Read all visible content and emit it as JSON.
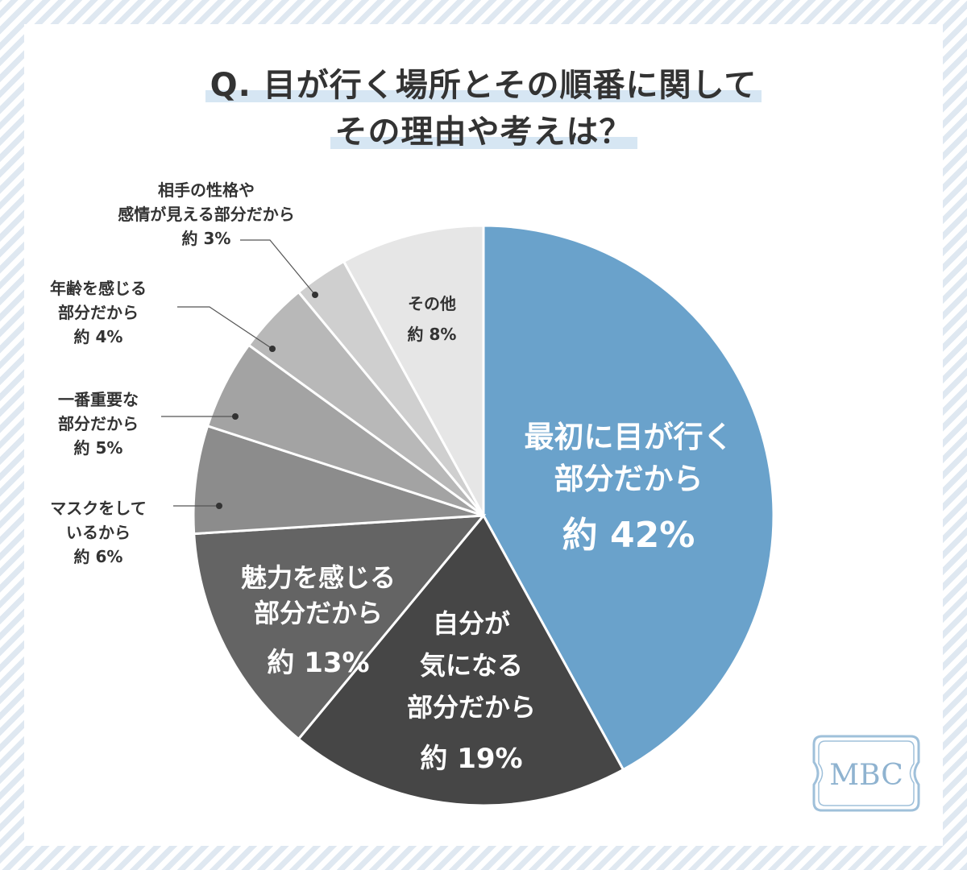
{
  "title": {
    "line1": "Q. 目が行く場所とその順番に関して",
    "line2": "その理由や考えは？"
  },
  "colors": {
    "accent": "#6aa2cb",
    "dark": "#464646",
    "mid_dark": "#646464",
    "gray1": "#8c8c8c",
    "gray2": "#a3a3a3",
    "gray3": "#b8b8b8",
    "gray4": "#cfcfcf",
    "light": "#e6e6e6",
    "highlight": "#d6e6f3"
  },
  "chart_data": {
    "type": "pie",
    "start_angle_deg": 0,
    "direction": "clockwise",
    "slices": [
      {
        "lines": [
          "最初に目が行く",
          "部分だから"
        ],
        "pct_text": "約 42%",
        "value": 42,
        "color": "#6aa2cb",
        "label_style": "inside-large"
      },
      {
        "lines": [
          "自分が",
          "気になる",
          "部分だから"
        ],
        "pct_text": "約 19%",
        "value": 19,
        "color": "#464646",
        "label_style": "inside"
      },
      {
        "lines": [
          "魅力を感じる",
          "部分だから"
        ],
        "pct_text": "約 13%",
        "value": 13,
        "color": "#646464",
        "label_style": "inside"
      },
      {
        "lines": [
          "マスクをして",
          "いるから"
        ],
        "pct_text": "約 6%",
        "value": 6,
        "color": "#8c8c8c",
        "label_style": "callout"
      },
      {
        "lines": [
          "一番重要な",
          "部分だから"
        ],
        "pct_text": "約 5%",
        "value": 5,
        "color": "#a3a3a3",
        "label_style": "callout"
      },
      {
        "lines": [
          "年齢を感じる",
          "部分だから"
        ],
        "pct_text": "約 4%",
        "value": 4,
        "color": "#b8b8b8",
        "label_style": "callout"
      },
      {
        "lines": [
          "相手の性格や",
          "感情が見える部分だから"
        ],
        "pct_text": "約 3%",
        "value": 3,
        "color": "#cfcfcf",
        "label_style": "callout"
      },
      {
        "lines": [
          "その他"
        ],
        "pct_text": "約 8%",
        "value": 8,
        "color": "#e6e6e6",
        "label_style": "inside-dark"
      }
    ]
  },
  "logo": {
    "text": "MBC"
  }
}
